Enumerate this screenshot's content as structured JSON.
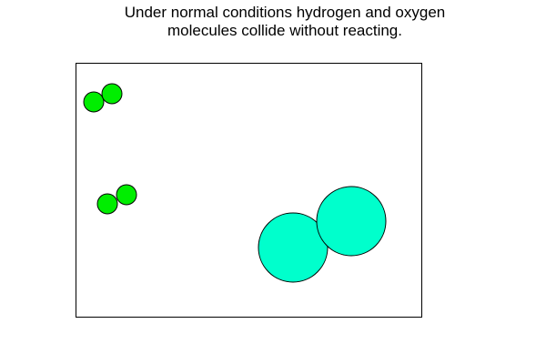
{
  "caption": {
    "line1": "Under normal conditions hydrogen and oxygen",
    "line2": "molecules collide without reacting."
  },
  "colors": {
    "hydrogen": "#00ee00",
    "oxygen": "#00ffcc",
    "outline": "#000000",
    "background": "#ffffff"
  },
  "molecules": [
    {
      "kind": "hydrogen",
      "atoms": 2
    },
    {
      "kind": "hydrogen",
      "atoms": 2
    },
    {
      "kind": "oxygen",
      "atoms": 2
    }
  ]
}
